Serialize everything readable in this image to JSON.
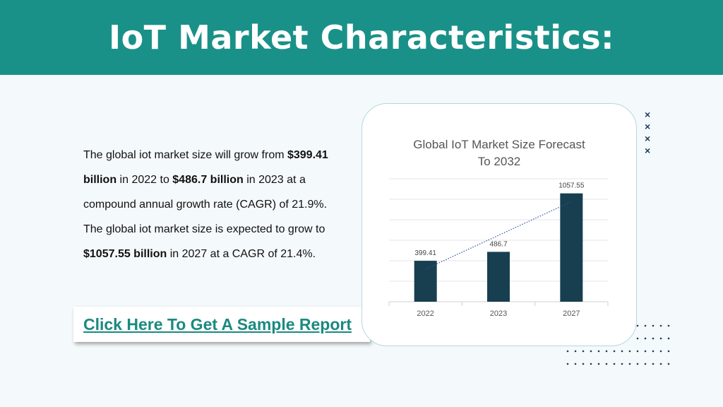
{
  "header": {
    "title": "IoT Market Characteristics:"
  },
  "body": {
    "p1": "The global iot market size will grow from ",
    "b1": "$399.41 billion",
    "p2": " in 2022 to ",
    "b2": "$486.7 billion",
    "p3": " in 2023 at a compound annual growth rate (CAGR) of 21.9%. The global iot market size is expected to grow to ",
    "b3": "$1057.55 billion",
    "p4": " in 2027 at a CAGR of 21.4%."
  },
  "cta": {
    "label": "Click Here To Get A Sample Report"
  },
  "decor": {
    "x_marks": [
      "×",
      "×",
      "×",
      "×"
    ]
  },
  "colors": {
    "header": "#1a9188",
    "bar": "#173f50",
    "link": "#1a8a80",
    "trendline": "#2e4fa0"
  },
  "chart_data": {
    "type": "bar",
    "title_line1": "Global IoT Market Size Forecast",
    "title_line2": "To 2032",
    "categories": [
      "2022",
      "2023",
      "2027"
    ],
    "values": [
      399.41,
      486.7,
      1057.55
    ],
    "data_labels": [
      "399.41",
      "486.7",
      "1057.55"
    ],
    "ylim": [
      0,
      1200
    ],
    "grid": true,
    "trendline": "linear, dotted"
  }
}
